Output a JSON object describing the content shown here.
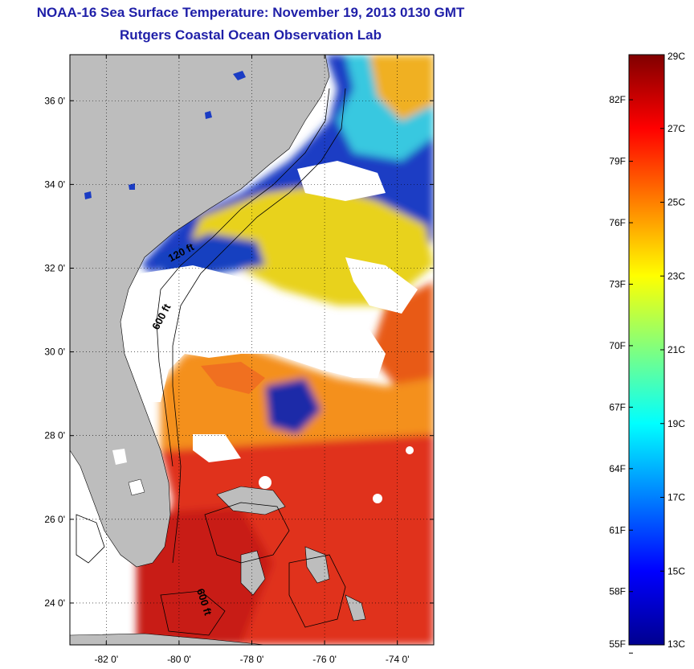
{
  "title": {
    "line1": "NOAA-16 Sea Surface Temperature:  November 19, 2013 0130 GMT",
    "line2": "Rutgers Coastal Ocean Observation Lab"
  },
  "map": {
    "lat_range": [
      23,
      37.1
    ],
    "lon_range": [
      -83,
      -73
    ],
    "lat_ticks": [
      {
        "value": 24,
        "label": "24 0'"
      },
      {
        "value": 26,
        "label": "26 0'"
      },
      {
        "value": 28,
        "label": "28 0'"
      },
      {
        "value": 30,
        "label": "30 0'"
      },
      {
        "value": 32,
        "label": "32 0'"
      },
      {
        "value": 34,
        "label": "34 0'"
      },
      {
        "value": 36,
        "label": "36 0'"
      }
    ],
    "lon_ticks": [
      {
        "value": -82,
        "label": "-82 0'"
      },
      {
        "value": -80,
        "label": "-80 0'"
      },
      {
        "value": -78,
        "label": "-78 0'"
      },
      {
        "value": -76,
        "label": "-76 0'"
      },
      {
        "value": -74,
        "label": "-74 0'"
      }
    ],
    "contour_labels": [
      {
        "text": "120 ft",
        "lon": -79.9,
        "lat": 32.3
      },
      {
        "text": "600 ft",
        "lon": -80.4,
        "lat": 30.8
      },
      {
        "text": "600 ft",
        "lon": -79.4,
        "lat": 24.0
      }
    ],
    "colors": {
      "land": "#bdbdbd",
      "cloud": "#ffffff",
      "cold": "#1230b8",
      "mid": "#f4e21a",
      "warm": "#e8321a"
    }
  },
  "colorbar": {
    "celsius_range": [
      13,
      29
    ],
    "celsius_ticks": [
      {
        "value": 29,
        "label": "29C"
      },
      {
        "value": 27,
        "label": "27C"
      },
      {
        "value": 25,
        "label": "25C"
      },
      {
        "value": 23,
        "label": "23C"
      },
      {
        "value": 21,
        "label": "21C"
      },
      {
        "value": 19,
        "label": "19C"
      },
      {
        "value": 17,
        "label": "17C"
      },
      {
        "value": 15,
        "label": "15C"
      },
      {
        "value": 13,
        "label": "13C"
      }
    ],
    "fahrenheit_ticks": [
      {
        "value": 82,
        "label": "82F"
      },
      {
        "value": 79,
        "label": "79F"
      },
      {
        "value": 76,
        "label": "76F"
      },
      {
        "value": 73,
        "label": "73F"
      },
      {
        "value": 70,
        "label": "70F"
      },
      {
        "value": 67,
        "label": "67F"
      },
      {
        "value": 64,
        "label": "64F"
      },
      {
        "value": 61,
        "label": "61F"
      },
      {
        "value": 58,
        "label": "58F"
      },
      {
        "value": 55,
        "label": "55F"
      }
    ]
  }
}
